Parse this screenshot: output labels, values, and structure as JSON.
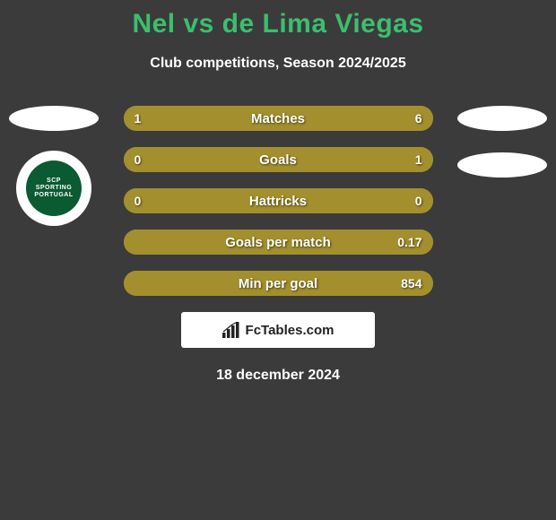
{
  "title": "Nel vs de Lima Viegas",
  "subtitle": "Club competitions, Season 2024/2025",
  "date_text": "18 december 2024",
  "attribution": "FcTables.com",
  "colors": {
    "background": "#3b3b3b",
    "title": "#3bbf6e",
    "subtitle": "#ffffff",
    "bar_left": "#a38f2d",
    "bar_right": "#a38f2d",
    "bar_text": "#ffffff",
    "attribution_bg": "#ffffff",
    "attribution_text": "#222222",
    "badge_green": "#0a5a32"
  },
  "club_badge": {
    "line1": "SCP",
    "line2": "SPORTING",
    "line3": "PORTUGAL"
  },
  "bars": {
    "height": 28,
    "radius": 14,
    "gap": 18,
    "font_size": 15,
    "rows": [
      {
        "label": "Matches",
        "left_val": "1",
        "right_val": "6",
        "left_pct": 14,
        "right_pct": 86
      },
      {
        "label": "Goals",
        "left_val": "0",
        "right_val": "1",
        "left_pct": 8,
        "right_pct": 92
      },
      {
        "label": "Hattricks",
        "left_val": "0",
        "right_val": "0",
        "left_pct": 8,
        "right_pct": 92
      },
      {
        "label": "Goals per match",
        "left_val": "",
        "right_val": "0.17",
        "left_pct": 0,
        "right_pct": 100
      },
      {
        "label": "Min per goal",
        "left_val": "",
        "right_val": "854",
        "left_pct": 0,
        "right_pct": 100
      }
    ]
  }
}
